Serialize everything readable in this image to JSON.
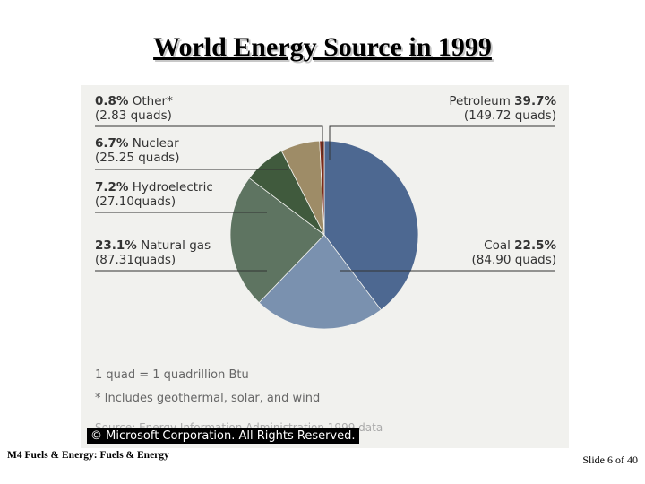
{
  "slide": {
    "title": "World Energy Source in 1999",
    "footer_left": "M4 Fuels & Energy: Fuels & Energy",
    "footer_right": "Slide 6 of 40"
  },
  "chart_data": {
    "type": "pie",
    "title": "World Energy Source in 1999",
    "slices": [
      {
        "name": "Petroleum",
        "percent_label": "39.7%",
        "value": 39.7,
        "quads_label": "(149.72 quads)",
        "color": "#4d6891"
      },
      {
        "name": "Coal",
        "percent_label": "22.5%",
        "value": 22.5,
        "quads_label": "(84.90 quads)",
        "color": "#7a91af"
      },
      {
        "name": "Natural gas",
        "percent_label": "23.1%",
        "value": 23.1,
        "quads_label": "(87.31quads)",
        "color": "#5e7461"
      },
      {
        "name": "Hydroelectric",
        "percent_label": "7.2%",
        "value": 7.2,
        "quads_label": "(27.10quads)",
        "color": "#405a3d"
      },
      {
        "name": "Nuclear",
        "percent_label": "6.7%",
        "value": 6.7,
        "quads_label": "(25.25 quads)",
        "color": "#9e8c67"
      },
      {
        "name": "Other",
        "percent_label": "0.8%",
        "value": 0.8,
        "quads_label": "(2.83 quads)",
        "color": "#7a2a1a"
      }
    ],
    "other_marker": "*",
    "notes": [
      "1 quad = 1 quadrillion Btu",
      "* Includes geothermal, solar, and wind"
    ],
    "source": "Source: Energy Information Administration 1999 data",
    "copyright": "© Microsoft Corporation. All Rights Reserved."
  }
}
